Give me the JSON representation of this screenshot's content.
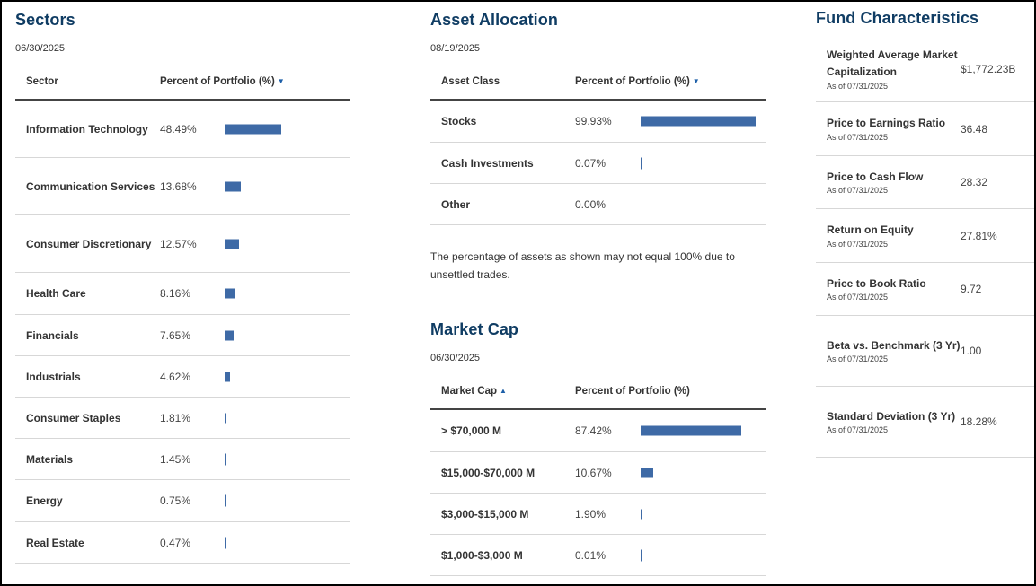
{
  "sectors": {
    "title": "Sectors",
    "date": "06/30/2025",
    "col_sector": "Sector",
    "col_percent": "Percent of Portfolio (%)",
    "sort_icon": "sort-desc-icon",
    "rows": [
      {
        "label": "Information Technology",
        "pct": "48.49%",
        "value": 48.49
      },
      {
        "label": "Communication Services",
        "pct": "13.68%",
        "value": 13.68
      },
      {
        "label": "Consumer Discretionary",
        "pct": "12.57%",
        "value": 12.57
      },
      {
        "label": "Health Care",
        "pct": "8.16%",
        "value": 8.16
      },
      {
        "label": "Financials",
        "pct": "7.65%",
        "value": 7.65
      },
      {
        "label": "Industrials",
        "pct": "4.62%",
        "value": 4.62
      },
      {
        "label": "Consumer Staples",
        "pct": "1.81%",
        "value": 1.81
      },
      {
        "label": "Materials",
        "pct": "1.45%",
        "value": 1.45
      },
      {
        "label": "Energy",
        "pct": "0.75%",
        "value": 0.75
      },
      {
        "label": "Real Estate",
        "pct": "0.47%",
        "value": 0.47
      }
    ]
  },
  "asset_allocation": {
    "title": "Asset Allocation",
    "date": "08/19/2025",
    "col_class": "Asset Class",
    "col_percent": "Percent of Portfolio (%)",
    "rows": [
      {
        "label": "Stocks",
        "pct": "99.93%",
        "value": 99.93
      },
      {
        "label": "Cash Investments",
        "pct": "0.07%",
        "value": 0.07
      },
      {
        "label": "Other",
        "pct": "0.00%",
        "value": 0.0
      }
    ],
    "note": "The percentage of assets as shown may not equal 100% due to unsettled trades."
  },
  "market_cap": {
    "title": "Market Cap",
    "date": "06/30/2025",
    "col_cap": "Market Cap",
    "col_percent": "Percent of Portfolio (%)",
    "rows": [
      {
        "label": "> $70,000 M",
        "pct": "87.42%",
        "value": 87.42
      },
      {
        "label": "$15,000-$70,000 M",
        "pct": "10.67%",
        "value": 10.67
      },
      {
        "label": "$3,000-$15,000 M",
        "pct": "1.90%",
        "value": 1.9
      },
      {
        "label": "$1,000-$3,000 M",
        "pct": "0.01%",
        "value": 0.01
      }
    ]
  },
  "fund_characteristics": {
    "title": "Fund Characteristics",
    "rows": [
      {
        "label": "Weighted Average Market Capitalization",
        "asof": "As of 07/31/2025",
        "value": "$1,772.23B"
      },
      {
        "label": "Price to Earnings Ratio",
        "asof": "As of 07/31/2025",
        "value": "36.48"
      },
      {
        "label": "Price to Cash Flow",
        "asof": "As of 07/31/2025",
        "value": "28.32"
      },
      {
        "label": "Return on Equity",
        "asof": "As of 07/31/2025",
        "value": "27.81%"
      },
      {
        "label": "Price to Book Ratio",
        "asof": "As of 07/31/2025",
        "value": "9.72"
      },
      {
        "label": "Beta vs. Benchmark (3 Yr)",
        "asof": "As of 07/31/2025",
        "value": "1.00"
      },
      {
        "label": "Standard Deviation (3 Yr)",
        "asof": "As of 07/31/2025",
        "value": "18.28%"
      }
    ]
  },
  "colors": {
    "heading": "#0f3c63",
    "bar": "#3e6aa6",
    "sort_arrow": "#1d5fa8"
  }
}
